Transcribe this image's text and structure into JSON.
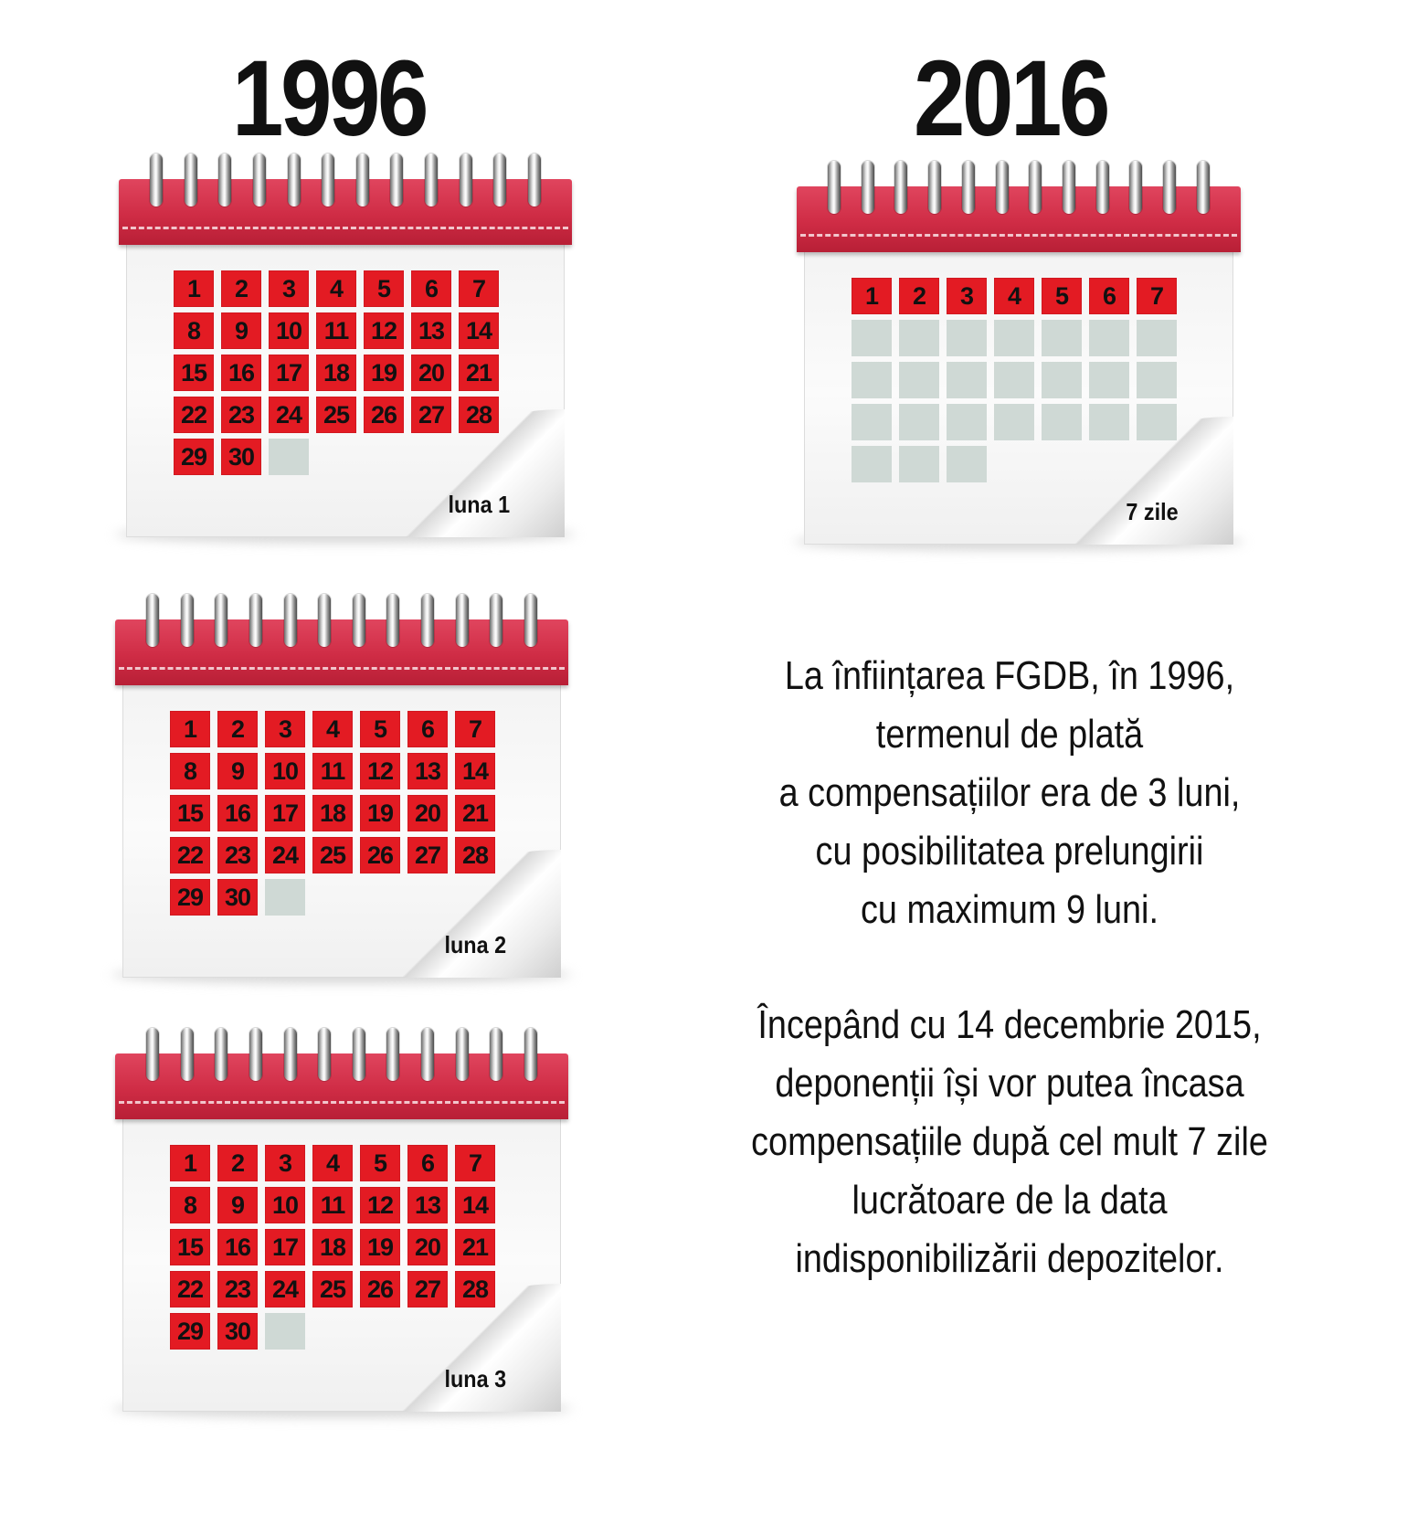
{
  "titles": {
    "left": "1996",
    "right": "2016"
  },
  "calendars": {
    "c1996_1": {
      "caption": "luna 1",
      "days": [
        "1",
        "2",
        "3",
        "4",
        "5",
        "6",
        "7",
        "8",
        "9",
        "10",
        "11",
        "12",
        "13",
        "14",
        "15",
        "16",
        "17",
        "18",
        "19",
        "20",
        "21",
        "22",
        "23",
        "24",
        "25",
        "26",
        "27",
        "28",
        "29",
        "30"
      ],
      "empty_cells": 1
    },
    "c1996_2": {
      "caption": "luna 2",
      "days": [
        "1",
        "2",
        "3",
        "4",
        "5",
        "6",
        "7",
        "8",
        "9",
        "10",
        "11",
        "12",
        "13",
        "14",
        "15",
        "16",
        "17",
        "18",
        "19",
        "20",
        "21",
        "22",
        "23",
        "24",
        "25",
        "26",
        "27",
        "28",
        "29",
        "30"
      ],
      "empty_cells": 1
    },
    "c1996_3": {
      "caption": "luna 3",
      "days": [
        "1",
        "2",
        "3",
        "4",
        "5",
        "6",
        "7",
        "8",
        "9",
        "10",
        "11",
        "12",
        "13",
        "14",
        "15",
        "16",
        "17",
        "18",
        "19",
        "20",
        "21",
        "22",
        "23",
        "24",
        "25",
        "26",
        "27",
        "28",
        "29",
        "30"
      ],
      "empty_cells": 1
    },
    "c2016": {
      "caption": "7 zile",
      "days": [
        "1",
        "2",
        "3",
        "4",
        "5",
        "6",
        "7"
      ],
      "empty_cells": 24
    }
  },
  "colors": {
    "marked_day": "#e31b23",
    "empty_day": "#cfd9d5",
    "header": "#d0304a"
  },
  "info": {
    "paragraph1": [
      "La înființarea FGDB, în 1996,",
      "termenul de plată",
      "a compensațiilor era de 3 luni,",
      "cu posibilitatea prelungirii",
      "cu maximum 9 luni."
    ],
    "paragraph2": [
      "Începând cu 14 decembrie 2015,",
      "deponenții își vor putea încasa",
      "compensațiile după cel mult 7 zile",
      "lucrătoare de la data",
      "indisponibilizării depozitelor."
    ]
  }
}
